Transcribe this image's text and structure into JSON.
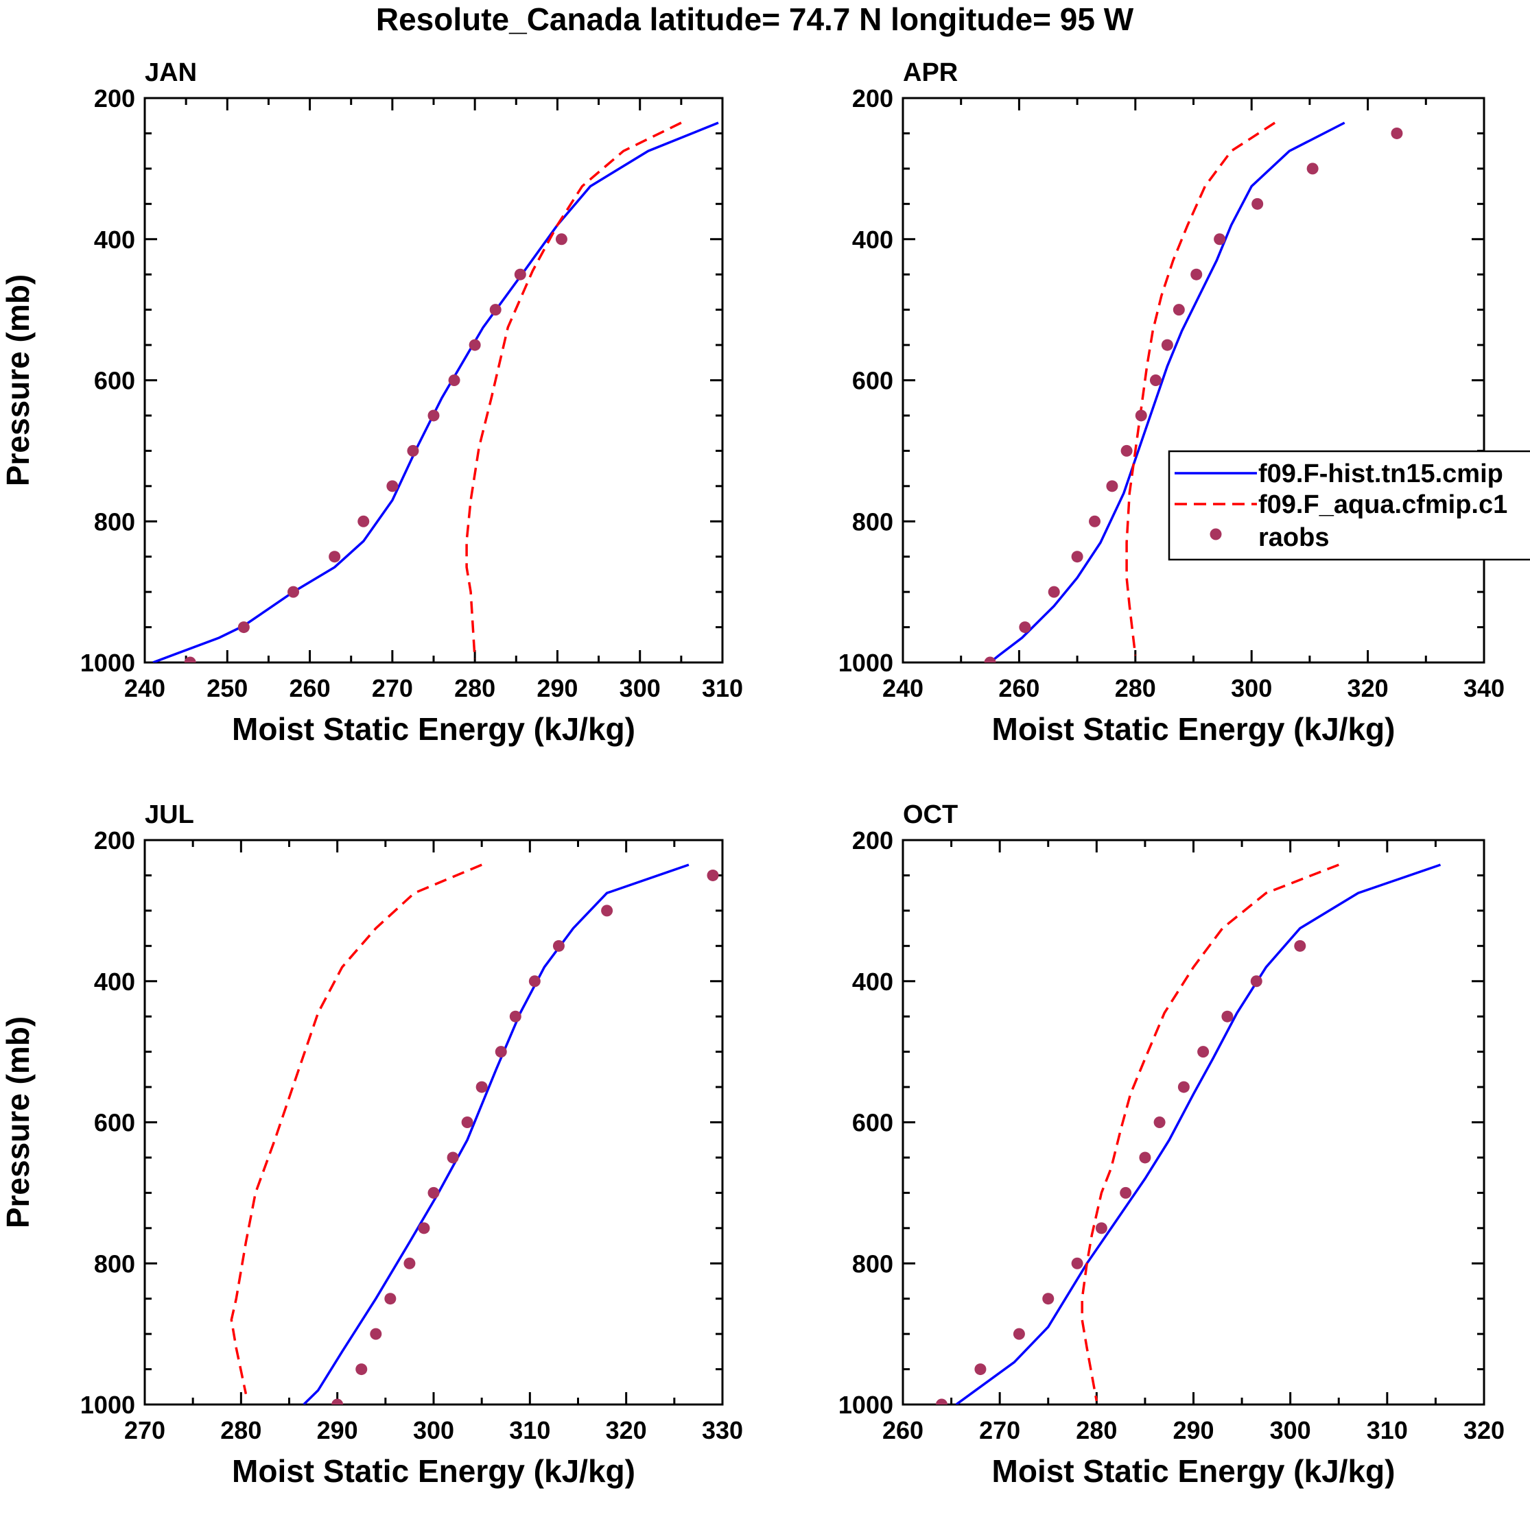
{
  "page": {
    "title": "Resolute_Canada  latitude= 74.7 N longitude= 95 W"
  },
  "colors": {
    "model1": "#0000ff",
    "model2": "#ff0000",
    "obs": "#a8345e"
  },
  "chart_data": [
    {
      "type": "line",
      "title": "JAN",
      "xlabel": "Moist Static Energy (kJ/kg)",
      "ylabel": "Pressure (mb)",
      "xlim": [
        240,
        310
      ],
      "ylim": [
        200,
        1000
      ],
      "y_inverted": true,
      "xticks": [
        240,
        250,
        260,
        270,
        280,
        290,
        300,
        310
      ],
      "yticks": [
        200,
        400,
        600,
        800,
        1000
      ],
      "series": [
        {
          "name": "f09.F-hist.tn15.cmip",
          "style": "solid",
          "color": "#0000ff",
          "x": [
            309.5,
            301,
            294,
            290,
            286,
            281,
            276,
            273,
            270,
            266.5,
            263,
            258,
            252,
            249,
            241
          ],
          "y": [
            235,
            275,
            325,
            380,
            445,
            525,
            625,
            695,
            770,
            828,
            865,
            900,
            948,
            965,
            1000
          ]
        },
        {
          "name": "f09.F_aqua.cfmip.c1",
          "style": "dashed",
          "color": "#ff0000",
          "x": [
            305,
            298,
            293,
            290,
            287,
            284,
            282,
            280.5,
            279.5,
            279,
            279,
            279.5,
            280
          ],
          "y": [
            235,
            275,
            325,
            380,
            445,
            525,
            625,
            695,
            770,
            828,
            865,
            900,
            995
          ]
        },
        {
          "name": "raobs",
          "style": "markers",
          "color": "#a8345e",
          "x": [
            290.5,
            285.5,
            282.5,
            280,
            277.5,
            275,
            272.5,
            270,
            266.5,
            263,
            258,
            252,
            245.5
          ],
          "y": [
            400,
            450,
            500,
            550,
            600,
            650,
            700,
            750,
            800,
            850,
            900,
            950,
            1000
          ]
        }
      ]
    },
    {
      "type": "line",
      "title": "APR",
      "xlabel": "Moist Static Energy (kJ/kg)",
      "ylabel": "",
      "xlim": [
        240,
        340
      ],
      "ylim": [
        200,
        1000
      ],
      "y_inverted": true,
      "xticks": [
        240,
        260,
        280,
        300,
        320,
        340
      ],
      "yticks": [
        200,
        400,
        600,
        800,
        1000
      ],
      "legend": {
        "position": "right-middle",
        "entries": [
          "f09.F-hist.tn15.cmip",
          "f09.F_aqua.cfmip.c1",
          "raobs"
        ]
      },
      "series": [
        {
          "name": "f09.F-hist.tn15.cmip",
          "style": "solid",
          "color": "#0000ff",
          "x": [
            316,
            306.5,
            300,
            296.5,
            294,
            291,
            288,
            285.5,
            283,
            280.5,
            278,
            274,
            270,
            266,
            260.5,
            256.5,
            255
          ],
          "y": [
            235,
            275,
            325,
            380,
            430,
            480,
            530,
            580,
            640,
            700,
            760,
            830,
            880,
            920,
            965,
            990,
            1000
          ]
        },
        {
          "name": "f09.F_aqua.cfmip.c1",
          "style": "dashed",
          "color": "#ff0000",
          "x": [
            304,
            296.5,
            292,
            289,
            286.5,
            284.5,
            283,
            282,
            281,
            280,
            279,
            278.5,
            278.5,
            279,
            280
          ],
          "y": [
            235,
            275,
            325,
            380,
            430,
            480,
            530,
            580,
            640,
            700,
            760,
            830,
            880,
            920,
            990
          ]
        },
        {
          "name": "raobs",
          "style": "markers",
          "color": "#a8345e",
          "x": [
            325,
            310.5,
            301,
            294.5,
            290.5,
            287.5,
            285.5,
            283.5,
            281,
            278.5,
            276,
            273,
            270,
            266,
            261,
            255
          ],
          "y": [
            250,
            300,
            350,
            400,
            450,
            500,
            550,
            600,
            650,
            700,
            750,
            800,
            850,
            900,
            950,
            1000
          ]
        }
      ]
    },
    {
      "type": "line",
      "title": "JUL",
      "xlabel": "Moist Static Energy (kJ/kg)",
      "ylabel": "Pressure (mb)",
      "xlim": [
        270,
        330
      ],
      "ylim": [
        200,
        1000
      ],
      "y_inverted": true,
      "xticks": [
        270,
        280,
        290,
        300,
        310,
        320,
        330
      ],
      "yticks": [
        200,
        400,
        600,
        800,
        1000
      ],
      "series": [
        {
          "name": "f09.F-hist.tn15.cmip",
          "style": "solid",
          "color": "#0000ff",
          "x": [
            326.5,
            318,
            314.5,
            311.5,
            309,
            306.5,
            303.5,
            300.5,
            297.5,
            294,
            290.5,
            288,
            286.5
          ],
          "y": [
            235,
            275,
            325,
            380,
            445,
            525,
            625,
            700,
            770,
            850,
            925,
            980,
            1000
          ]
        },
        {
          "name": "f09.F_aqua.cfmip.c1",
          "style": "dashed",
          "color": "#ff0000",
          "x": [
            305,
            298,
            294,
            290.5,
            288,
            286,
            283.5,
            281.5,
            280.5,
            279.5,
            279,
            279.5,
            280.5
          ],
          "y": [
            235,
            275,
            325,
            380,
            445,
            525,
            625,
            700,
            770,
            850,
            880,
            920,
            985
          ]
        },
        {
          "name": "raobs",
          "style": "markers",
          "color": "#a8345e",
          "x": [
            329,
            318,
            313,
            310.5,
            308.5,
            307,
            305,
            303.5,
            302,
            300,
            299,
            297.5,
            295.5,
            294,
            292.5,
            290
          ],
          "y": [
            250,
            300,
            350,
            400,
            450,
            500,
            550,
            600,
            650,
            700,
            750,
            800,
            850,
            900,
            950,
            1000
          ]
        }
      ]
    },
    {
      "type": "line",
      "title": "OCT",
      "xlabel": "Moist Static Energy (kJ/kg)",
      "ylabel": "",
      "xlim": [
        260,
        320
      ],
      "ylim": [
        200,
        1000
      ],
      "y_inverted": true,
      "xticks": [
        260,
        270,
        280,
        290,
        300,
        310,
        320
      ],
      "yticks": [
        200,
        400,
        600,
        800,
        1000
      ],
      "series": [
        {
          "name": "f09.F-hist.tn15.cmip",
          "style": "solid",
          "color": "#0000ff",
          "x": [
            315.5,
            307,
            301,
            297.5,
            294.5,
            292,
            290,
            287.5,
            285,
            282,
            279,
            275,
            271.5,
            267,
            265.5
          ],
          "y": [
            235,
            275,
            325,
            380,
            445,
            510,
            560,
            625,
            680,
            740,
            800,
            890,
            940,
            985,
            1000
          ]
        },
        {
          "name": "f09.F_aqua.cfmip.c1",
          "style": "dashed",
          "color": "#ff0000",
          "x": [
            305,
            297.5,
            293,
            290,
            287,
            285,
            283.5,
            282.5,
            281.5,
            280.5,
            279.5,
            279,
            278.5,
            278.5,
            279,
            280
          ],
          "y": [
            235,
            275,
            325,
            380,
            445,
            510,
            560,
            610,
            665,
            700,
            760,
            800,
            850,
            880,
            920,
            995
          ]
        },
        {
          "name": "raobs",
          "style": "markers",
          "color": "#a8345e",
          "x": [
            301,
            296.5,
            293.5,
            291,
            289,
            286.5,
            285,
            283,
            280.5,
            278,
            275,
            272,
            268,
            264
          ],
          "y": [
            350,
            400,
            450,
            500,
            550,
            600,
            650,
            700,
            750,
            800,
            850,
            900,
            950,
            1000
          ]
        }
      ]
    }
  ]
}
